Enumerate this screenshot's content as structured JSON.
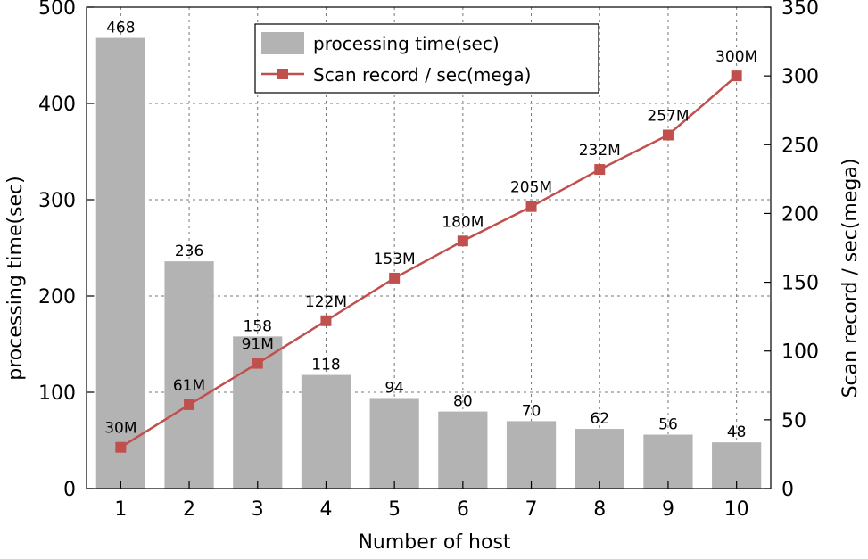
{
  "chart_data": {
    "type": "bar+line",
    "xlabel": "Number of host",
    "categories": [
      "1",
      "2",
      "3",
      "4",
      "5",
      "6",
      "7",
      "8",
      "9",
      "10"
    ],
    "grid": true,
    "legend_position": "top-center",
    "series": [
      {
        "name": "processing time(sec)",
        "kind": "bar",
        "axis": "left",
        "color": "#b3b3b3",
        "values": [
          468,
          236,
          158,
          118,
          94,
          80,
          70,
          62,
          56,
          48
        ],
        "labels": [
          "468",
          "236",
          "158",
          "118",
          "94",
          "80",
          "70",
          "62",
          "56",
          "48"
        ]
      },
      {
        "name": "Scan record / sec(mega)",
        "kind": "line",
        "axis": "right",
        "color": "#c0504d",
        "marker": "square",
        "values": [
          30,
          61,
          91,
          122,
          153,
          180,
          205,
          232,
          257,
          300
        ],
        "labels": [
          "30M",
          "61M",
          "91M",
          "122M",
          "153M",
          "180M",
          "205M",
          "232M",
          "257M",
          "300M"
        ]
      }
    ],
    "y_left": {
      "label": "processing time(sec)",
      "ylim": [
        0,
        500
      ],
      "ticks": [
        "0",
        "100",
        "200",
        "300",
        "400",
        "500"
      ]
    },
    "y_right": {
      "label": "Scan record / sec(mega)",
      "ylim": [
        0,
        350
      ],
      "ticks": [
        "0",
        "50",
        "100",
        "150",
        "200",
        "250",
        "300",
        "350"
      ]
    }
  }
}
